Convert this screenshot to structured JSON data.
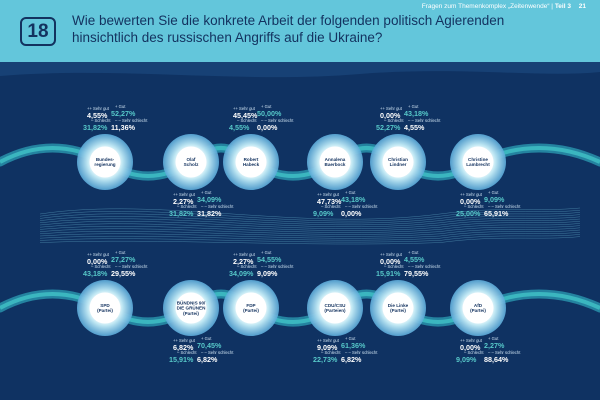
{
  "header": {
    "section": "Fragen zum Themenkomplex „Zeitenwende“ | ",
    "part": "Teil 3",
    "page": "21",
    "question_number": "18",
    "question": "Wie bewerten Sie die konkrete Arbeit der folgenden politisch Agierenden hinsichtlich des russischen Angriffs auf die Ukraine?"
  },
  "labels": {
    "sehr_gut": "Sehr gut",
    "gut": "Gut",
    "schlecht": "Schlecht",
    "sehr_schlecht": "Sehr schlecht"
  },
  "colors": {
    "background": "#0f3262",
    "header": "#63c6db",
    "teal": "#57c8c9",
    "white": "#ffffff"
  },
  "chart_data": {
    "type": "table",
    "title": "Wie bewerten Sie die konkrete Arbeit der folgenden politisch Agierenden hinsichtlich des russischen Angriffs auf die Ukraine?",
    "categories": [
      "Sehr gut",
      "Gut",
      "Schlecht",
      "Sehr schlecht"
    ],
    "rows": [
      [
        {
          "name": "Bundes-\nregierung",
          "sehr_gut": "4,55%",
          "gut": "52,27%",
          "schlecht": "31,82%",
          "sehr_schlecht": "11,36%"
        },
        {
          "name": "Olaf\nScholz",
          "sehr_gut": "2,27%",
          "gut": "34,09%",
          "schlecht": "31,82%",
          "sehr_schlecht": "31,82%"
        },
        {
          "name": "Robert\nHabeck",
          "sehr_gut": "45,45%",
          "gut": "50,00%",
          "schlecht": "4,55%",
          "sehr_schlecht": "0,00%"
        },
        {
          "name": "Annalena\nBaerbock",
          "sehr_gut": "47,73%",
          "gut": "43,18%",
          "schlecht": "9,09%",
          "sehr_schlecht": "0,00%"
        },
        {
          "name": "Christian\nLindner",
          "sehr_gut": "0,00%",
          "gut": "43,18%",
          "schlecht": "52,27%",
          "sehr_schlecht": "4,55%"
        },
        {
          "name": "Christine\nLambrecht",
          "sehr_gut": "0,00%",
          "gut": "9,09%",
          "schlecht": "25,00%",
          "sehr_schlecht": "65,91%"
        }
      ],
      [
        {
          "name": "SPD\n(Partei)",
          "sehr_gut": "0,00%",
          "gut": "27,27%",
          "schlecht": "43,18%",
          "sehr_schlecht": "29,55%"
        },
        {
          "name": "BÜNDNIS 90/\nDIE GRÜNEN\n(Partei)",
          "sehr_gut": "6,82%",
          "gut": "70,45%",
          "schlecht": "15,91%",
          "sehr_schlecht": "6,82%"
        },
        {
          "name": "FDP\n(Partei)",
          "sehr_gut": "2,27%",
          "gut": "54,55%",
          "schlecht": "34,09%",
          "sehr_schlecht": "9,09%"
        },
        {
          "name": "CDU/CSU\n(Parteien)",
          "sehr_gut": "9,09%",
          "gut": "61,36%",
          "schlecht": "22,73%",
          "sehr_schlecht": "6,82%"
        },
        {
          "name": "Die Linke\n(Partei)",
          "sehr_gut": "0,00%",
          "gut": "4,55%",
          "schlecht": "15,91%",
          "sehr_schlecht": "79,55%"
        },
        {
          "name": "AfD\n(Partei)",
          "sehr_gut": "0,00%",
          "gut": "2,27%",
          "schlecht": "9,09%",
          "sehr_schlecht": "88,64%"
        }
      ]
    ]
  }
}
